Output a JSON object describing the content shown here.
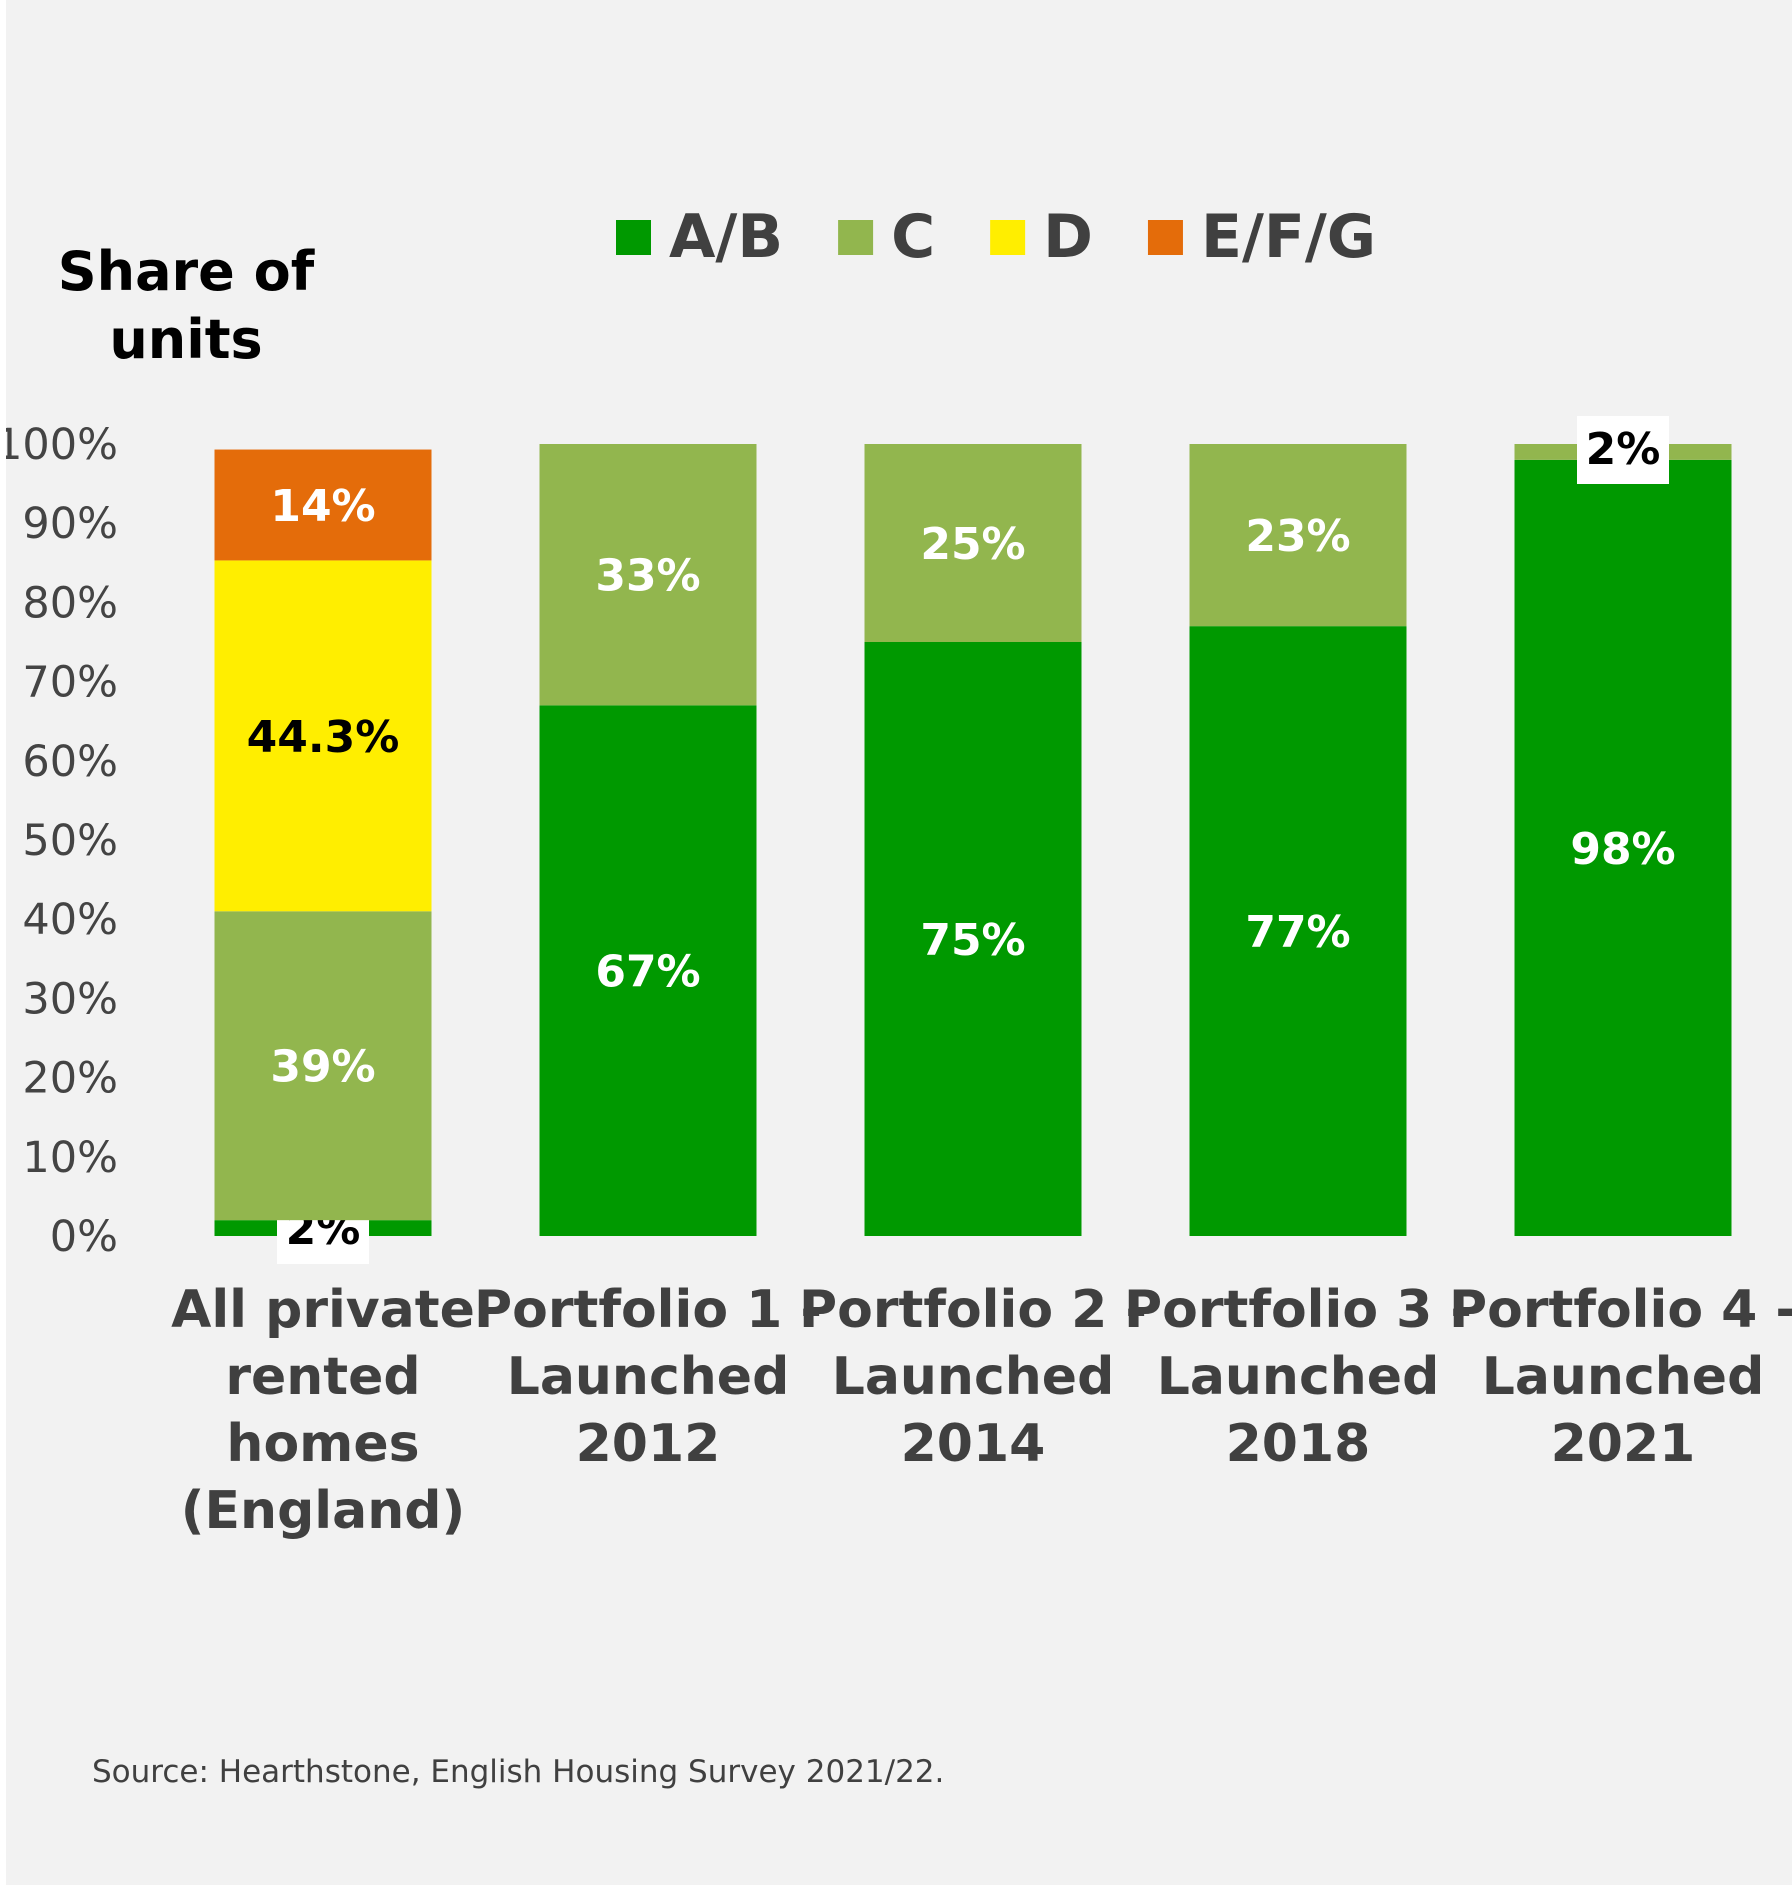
{
  "chart_data": {
    "type": "bar",
    "stacked": true,
    "ylabel": "Share of units",
    "ylim": [
      0,
      100
    ],
    "yticks": [
      "0%",
      "10%",
      "20%",
      "30%",
      "40%",
      "50%",
      "60%",
      "70%",
      "80%",
      "90%",
      "100%"
    ],
    "legend_position": "top",
    "categories": [
      [
        "All private",
        "rented",
        "homes",
        "(England)"
      ],
      [
        "Portfolio 1 -",
        "Launched",
        "2012"
      ],
      [
        "Portfolio 2 -",
        "Launched",
        "2014"
      ],
      [
        "Portfolio 3 -",
        "Launched",
        "2018"
      ],
      [
        "Portfolio 4 -",
        "Launched",
        "2021"
      ]
    ],
    "series": [
      {
        "name": "A/B",
        "color": "#009900",
        "values": [
          2,
          67,
          75,
          77,
          98
        ],
        "labels": [
          "2%",
          "67%",
          "75%",
          "77%",
          "98%"
        ]
      },
      {
        "name": "C",
        "color": "#92b64e",
        "values": [
          39,
          33,
          25,
          23,
          2
        ],
        "labels": [
          "39%",
          "33%",
          "25%",
          "23%",
          "2%"
        ]
      },
      {
        "name": "D",
        "color": "#ffee00",
        "values": [
          44.3,
          0,
          0,
          0,
          0
        ],
        "labels": [
          "44.3%",
          "",
          "",
          "",
          ""
        ]
      },
      {
        "name": "E/F/G",
        "color": "#e46c0a",
        "values": [
          14,
          0,
          0,
          0,
          0
        ],
        "labels": [
          "14%",
          "",
          "",
          "",
          ""
        ]
      }
    ]
  },
  "source": "Source: Hearthstone, English Housing Survey 2021/22."
}
